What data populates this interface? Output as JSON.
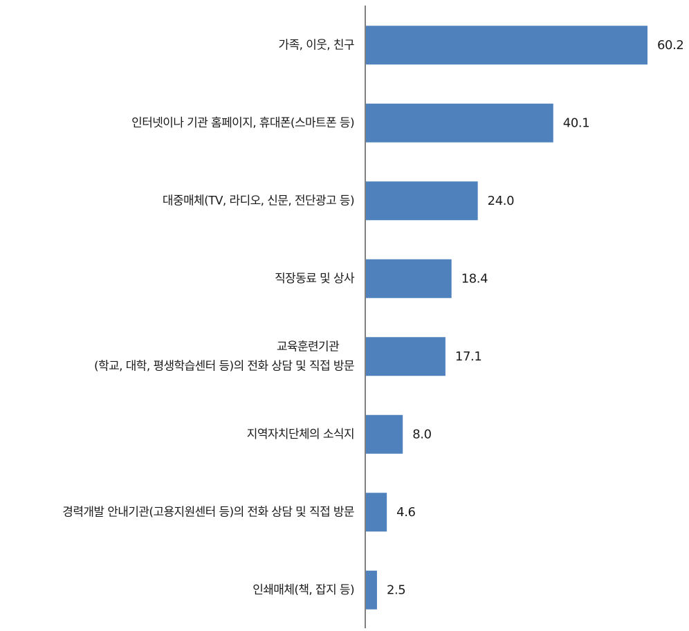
{
  "chart_data": {
    "type": "bar",
    "orientation": "horizontal",
    "categories": [
      [
        "가족, 이웃, 친구"
      ],
      [
        "인터넷이나 기관 홈페이지, 휴대폰(스마트폰 등)"
      ],
      [
        "대중매체(TV, 라디오, 신문, 전단광고 등)"
      ],
      [
        "직장동료 및 상사"
      ],
      [
        "교육훈련기관",
        "(학교, 대학, 평생학습센터 등)의 전화 상담 및 직접 방문"
      ],
      [
        "지역자치단체의 소식지"
      ],
      [
        "경력개발 안내기관(고용지원센터 등)의 전화 상담 및 직접 방문"
      ],
      [
        "인쇄매체(책, 잡지 등)"
      ]
    ],
    "values": [
      60.2,
      40.1,
      24.0,
      18.4,
      17.1,
      8.0,
      4.6,
      2.5
    ],
    "value_labels": [
      "60.2",
      "40.1",
      "24.0",
      "18.4",
      "17.1",
      "8.0",
      "4.6",
      "2.5"
    ],
    "title": "",
    "xlabel": "",
    "ylabel": "",
    "xlim": [
      0,
      70
    ],
    "grid": false,
    "legend": "none",
    "bar_color": "#4f81bd",
    "axis_color": "#808080"
  }
}
